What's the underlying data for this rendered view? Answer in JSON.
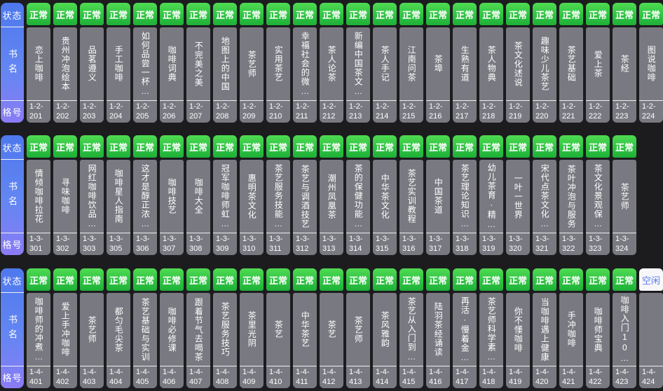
{
  "labels": {
    "status": "状态",
    "book_name": "书名",
    "slot_no": "格号"
  },
  "status_types": {
    "normal": {
      "label": "正常",
      "color": "#2fc443",
      "text_color": "#ffffff"
    },
    "idle": {
      "label": "空闲",
      "color": "#f7f7f9",
      "text_color": "#5b7cf0"
    }
  },
  "colors": {
    "background": "#1c1c1f",
    "slot_body": "#797981",
    "label_gradient_top": "#4e78ee",
    "label_gradient_bottom": "#8b7cf6"
  },
  "rows": [
    {
      "slots": [
        {
          "status": "正常",
          "title": "恋上咖啡",
          "slot": "1-2-201"
        },
        {
          "status": "正常",
          "title": "贵州冲泡绘本",
          "slot": "1-2-202"
        },
        {
          "status": "正常",
          "title": "品茗遵义",
          "slot": "1-2-203"
        },
        {
          "status": "正常",
          "title": "手工咖啡",
          "slot": "1-2-204"
        },
        {
          "status": "正常",
          "title": "如何品尝一杯…",
          "slot": "1-2-205"
        },
        {
          "status": "正常",
          "title": "咖啡词典",
          "slot": "1-2-206"
        },
        {
          "status": "正常",
          "title": "不完美之美",
          "slot": "1-2-207"
        },
        {
          "status": "正常",
          "title": "地图上的中国",
          "slot": "1-2-208"
        },
        {
          "status": "正常",
          "title": "茶艺师",
          "slot": "1-2-209"
        },
        {
          "status": "正常",
          "title": "实用茶艺",
          "slot": "1-2-210"
        },
        {
          "status": "正常",
          "title": "幸福社会的微…",
          "slot": "1-2-211"
        },
        {
          "status": "正常",
          "title": "茶人论茶",
          "slot": "1-2-212"
        },
        {
          "status": "正常",
          "title": "新编中国茶文…",
          "slot": "1-2-213"
        },
        {
          "status": "正常",
          "title": "茶人手记",
          "slot": "1-2-214"
        },
        {
          "status": "正常",
          "title": "江南问茶",
          "slot": "1-2-215"
        },
        {
          "status": "正常",
          "title": "茶埠",
          "slot": "1-2-216"
        },
        {
          "status": "正常",
          "title": "生熟有道",
          "slot": "1-2-217"
        },
        {
          "status": "正常",
          "title": "茶人物典",
          "slot": "1-2-218"
        },
        {
          "status": "正常",
          "title": "茶文化述说",
          "slot": "1-2-219"
        },
        {
          "status": "正常",
          "title": "趣味少儿茶艺",
          "slot": "1-2-220"
        },
        {
          "status": "正常",
          "title": "茶艺基础",
          "slot": "1-2-221"
        },
        {
          "status": "正常",
          "title": "爱上茶",
          "slot": "1-2-222"
        },
        {
          "status": "正常",
          "title": "茶经",
          "slot": "1-2-223"
        },
        {
          "status": "正常",
          "title": "图说咖啡",
          "slot": "1-2-224"
        }
      ]
    },
    {
      "slots": [
        {
          "status": "正常",
          "title": "情倾咖啡拉花",
          "slot": "1-3-301"
        },
        {
          "status": "正常",
          "title": "寻味咖啡",
          "slot": "1-3-302"
        },
        {
          "status": "正常",
          "title": "网红咖啡饮品…",
          "slot": "1-3-303"
        },
        {
          "status": "正常",
          "title": "咖啡星人指南",
          "slot": "1-3-305"
        },
        {
          "status": "正常",
          "title": "这才是醇正浓…",
          "slot": "1-3-306"
        },
        {
          "status": "正常",
          "title": "咖啡技艺",
          "slot": "1-3-307"
        },
        {
          "status": "正常",
          "title": "咖啡大全",
          "slot": "1-3-308"
        },
        {
          "status": "正常",
          "title": "冠军咖啡师虹…",
          "slot": "1-3-309"
        },
        {
          "status": "正常",
          "title": "惠明茶文化",
          "slot": "1-3-310"
        },
        {
          "status": "正常",
          "title": "茶艺服务技能…",
          "slot": "1-3-311"
        },
        {
          "status": "正常",
          "title": "茶艺与调酒技艺",
          "slot": "1-3-312"
        },
        {
          "status": "正常",
          "title": "潮州凤凰茶",
          "slot": "1-3-313"
        },
        {
          "status": "正常",
          "title": "茶的保健功能…",
          "slot": "1-3-314"
        },
        {
          "status": "正常",
          "title": "中华茶文化",
          "slot": "1-3-315"
        },
        {
          "status": "正常",
          "title": "茶艺实训教程",
          "slot": "1-3-316"
        },
        {
          "status": "正常",
          "title": "中国茶道",
          "slot": "1-3-317"
        },
        {
          "status": "正常",
          "title": "茶艺理论知识…",
          "slot": "1-3-318"
        },
        {
          "status": "正常",
          "title": "幼儿茶育·精…",
          "slot": "1-3-319"
        },
        {
          "status": "正常",
          "title": "一叶一世界",
          "slot": "1-3-320"
        },
        {
          "status": "正常",
          "title": "宋代点茶文化…",
          "slot": "1-3-321"
        },
        {
          "status": "正常",
          "title": "茶叶冲泡与服务",
          "slot": "1-3-322"
        },
        {
          "status": "正常",
          "title": "茶文化景观保…",
          "slot": "1-3-323"
        },
        {
          "status": "正常",
          "title": "茶艺师",
          "slot": "1-3-324"
        }
      ]
    },
    {
      "slots": [
        {
          "status": "正常",
          "title": "咖啡师的冲煮…",
          "slot": "1-4-401"
        },
        {
          "status": "正常",
          "title": "爱上手冲咖啡",
          "slot": "1-4-402"
        },
        {
          "status": "正常",
          "title": "茶艺师",
          "slot": "1-4-403"
        },
        {
          "status": "正常",
          "title": "都匀毛尖茶",
          "slot": "1-4-404"
        },
        {
          "status": "正常",
          "title": "茶艺基础与实训",
          "slot": "1-4-405"
        },
        {
          "status": "正常",
          "title": "咖啡必修课",
          "slot": "1-4-406"
        },
        {
          "status": "正常",
          "title": "跟着节气去喝茶",
          "slot": "1-4-407"
        },
        {
          "status": "正常",
          "title": "茶艺服务技巧",
          "slot": "1-4-408"
        },
        {
          "status": "正常",
          "title": "茶里光阴",
          "slot": "1-4-409"
        },
        {
          "status": "正常",
          "title": "茶艺",
          "slot": "1-4-410"
        },
        {
          "status": "正常",
          "title": "中华茶艺",
          "slot": "1-4-411"
        },
        {
          "status": "正常",
          "title": "茶艺",
          "slot": "1-4-412"
        },
        {
          "status": "正常",
          "title": "茶艺师",
          "slot": "1-4-413"
        },
        {
          "status": "正常",
          "title": "茶风雅韵",
          "slot": "1-4-414"
        },
        {
          "status": "正常",
          "title": "茶艺从入门到…",
          "slot": "1-4-415"
        },
        {
          "status": "正常",
          "title": "陆羽茶经诵读",
          "slot": "1-4-416"
        },
        {
          "status": "正常",
          "title": "再活·慢着金…",
          "slot": "1-4-417"
        },
        {
          "status": "正常",
          "title": "茶艺师科学素…",
          "slot": "1-4-418"
        },
        {
          "status": "正常",
          "title": "你不懂咖啡",
          "slot": "1-4-419"
        },
        {
          "status": "正常",
          "title": "当咖啡遇上健康",
          "slot": "1-4-420"
        },
        {
          "status": "正常",
          "title": "手冲咖啡",
          "slot": "1-4-421"
        },
        {
          "status": "正常",
          "title": "咖啡师宝典",
          "slot": "1-4-422"
        },
        {
          "status": "正常",
          "title": "咖啡入门10…",
          "slot": "1-4-423"
        },
        {
          "status": "空闲",
          "title": "",
          "slot": "1-4-424"
        }
      ]
    }
  ]
}
